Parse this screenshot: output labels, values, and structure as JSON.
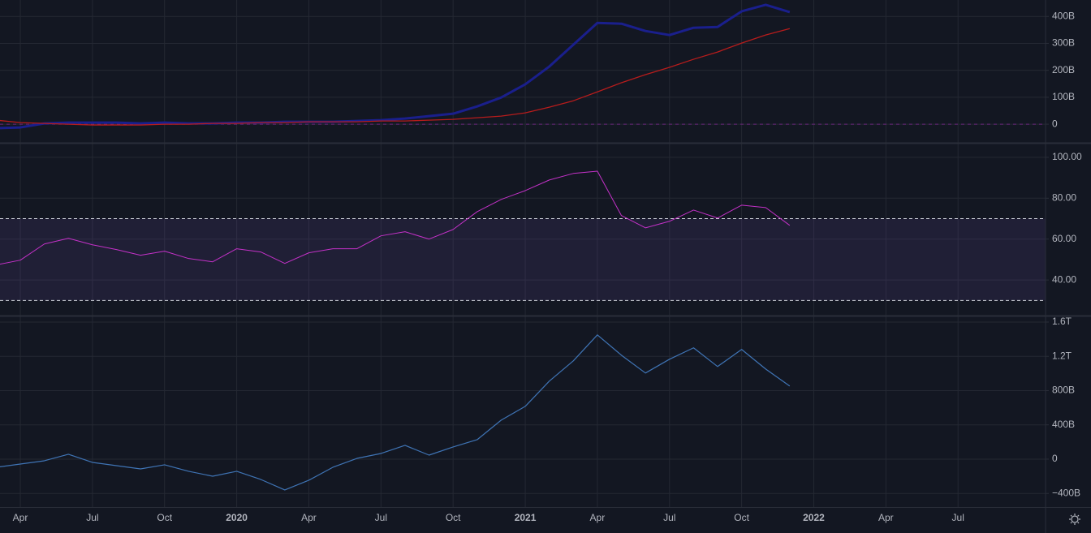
{
  "chart_data": [
    {
      "type": "line",
      "ylim": [
        -69,
        461
      ],
      "yticks": [
        0,
        {
          "value": 100,
          "label": "100B"
        },
        {
          "value": 200,
          "label": "200B"
        },
        {
          "value": 300,
          "label": "300B"
        },
        {
          "value": 400,
          "label": "400B"
        }
      ],
      "grid": true,
      "hline": 0,
      "hline_color": "#9c27b0",
      "series": [
        {
          "color": "#1a1f8c",
          "width": 3,
          "values": [
            -15,
            -12,
            3,
            6,
            6,
            6,
            3,
            6,
            3,
            3,
            6,
            6,
            9,
            9,
            9,
            12,
            15,
            21,
            30,
            39,
            66,
            99,
            148,
            214,
            295,
            376,
            373,
            346,
            331,
            358,
            361,
            419,
            443,
            416,
            null,
            null,
            null,
            null,
            null,
            null,
            null,
            null,
            null
          ]
        },
        {
          "color": "#b71c1c",
          "width": 1.3,
          "values": [
            15,
            6,
            3,
            0,
            -3,
            -3,
            -3,
            0,
            0,
            3,
            3,
            6,
            6,
            9,
            9,
            9,
            12,
            12,
            15,
            18,
            24,
            30,
            42,
            63,
            87,
            120,
            154,
            184,
            211,
            241,
            268,
            301,
            331,
            355,
            null,
            null,
            null,
            null,
            null,
            null,
            null,
            null,
            null
          ]
        }
      ]
    },
    {
      "type": "line",
      "ylim": [
        22.6,
        106.7
      ],
      "yticks": [
        {
          "value": 40,
          "label": "40.00"
        },
        {
          "value": 60,
          "label": "60.00"
        },
        {
          "value": 80,
          "label": "80.00"
        },
        {
          "value": 100,
          "label": "100.00"
        }
      ],
      "grid": true,
      "band": [
        30,
        70
      ],
      "band_color": "#7e57c2",
      "series": [
        {
          "color": "#c431c8",
          "width": 1,
          "values": [
            47.4,
            49.7,
            57.6,
            60.4,
            57.2,
            54.9,
            52.1,
            54.1,
            50.5,
            48.9,
            55.3,
            53.7,
            48.1,
            53.3,
            55.3,
            55.3,
            61.6,
            63.6,
            60.0,
            64.7,
            73.4,
            79.4,
            83.7,
            88.9,
            92.1,
            93.2,
            71.5,
            65.5,
            68.7,
            74.2,
            70.3,
            76.6,
            75.4,
            66.7,
            null,
            null,
            null,
            null,
            null,
            null,
            null,
            null,
            null
          ]
        }
      ]
    },
    {
      "type": "line",
      "ylim": [
        -559,
        1666
      ],
      "yticks": [
        {
          "value": -400,
          "label": "−400B"
        },
        0,
        {
          "value": 400,
          "label": "400B"
        },
        {
          "value": 800,
          "label": "800B"
        },
        {
          "value": 1200,
          "label": "1.2T"
        },
        {
          "value": 1600,
          "label": "1.6T"
        }
      ],
      "grid": true,
      "categories": [
        null,
        "Apr",
        null,
        null,
        "Jul",
        null,
        null,
        "Oct",
        null,
        null,
        "2020",
        null,
        null,
        "Apr",
        null,
        null,
        "Jul",
        null,
        null,
        "Oct",
        null,
        null,
        "2021",
        null,
        null,
        "Apr",
        null,
        null,
        "Jul",
        null,
        null,
        "Oct",
        null,
        null,
        "2022",
        null,
        null,
        "Apr",
        null,
        null,
        "Jul",
        null,
        null
      ],
      "series": [
        {
          "color": "#3f74b5",
          "width": 1.2,
          "values": [
            -95,
            -57,
            -19,
            57,
            -38,
            -76,
            -114,
            -66,
            -142,
            -199,
            -142,
            -237,
            -360,
            -246,
            -95,
            9,
            66,
            161,
            47,
            142,
            227,
            455,
            616,
            910,
            1147,
            1450,
            1213,
            1005,
            1166,
            1299,
            1081,
            1280,
            1052,
            853,
            null,
            null,
            null,
            null,
            null,
            null,
            null,
            null,
            null
          ]
        }
      ]
    }
  ]
}
